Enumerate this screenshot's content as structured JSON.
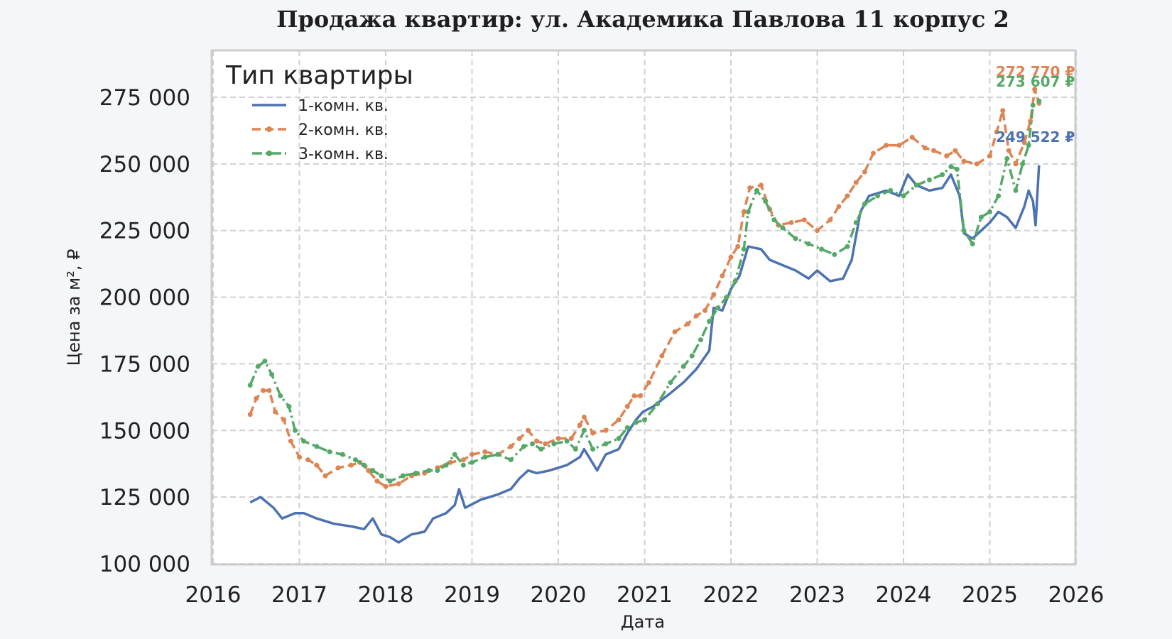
{
  "chart_data": {
    "type": "line",
    "title": "Продажа квартир: ул. Академика Павлова 11 корпус 2",
    "xlabel": "Дата",
    "ylabel": "Цена за м², ₽",
    "xlim": [
      2016,
      2026
    ],
    "ylim": [
      100000,
      290000
    ],
    "x_ticks": [
      2016,
      2017,
      2018,
      2019,
      2020,
      2021,
      2022,
      2023,
      2024,
      2025,
      2026
    ],
    "x_tick_labels": [
      "2016",
      "2017",
      "2018",
      "2019",
      "2020",
      "2021",
      "2022",
      "2023",
      "2024",
      "2025",
      "2026"
    ],
    "y_ticks": [
      100000,
      125000,
      150000,
      175000,
      200000,
      225000,
      250000,
      275000
    ],
    "y_tick_labels": [
      "100 000",
      "125 000",
      "150 000",
      "175 000",
      "200 000",
      "225 000",
      "250 000",
      "275 000"
    ],
    "grid": true,
    "legend": {
      "title": "Тип квартиры",
      "position": "top-left"
    },
    "series": [
      {
        "name": "1-комн. кв.",
        "color": "#4c72b0",
        "style": "solid",
        "end_label": "249 522 ₽",
        "points": [
          [
            2016.43,
            123000
          ],
          [
            2016.55,
            125000
          ],
          [
            2016.7,
            121000
          ],
          [
            2016.8,
            117000
          ],
          [
            2016.95,
            119000
          ],
          [
            2017.05,
            119000
          ],
          [
            2017.2,
            117000
          ],
          [
            2017.4,
            115000
          ],
          [
            2017.6,
            114000
          ],
          [
            2017.75,
            113000
          ],
          [
            2017.85,
            117000
          ],
          [
            2017.95,
            111000
          ],
          [
            2018.05,
            110000
          ],
          [
            2018.15,
            108000
          ],
          [
            2018.3,
            111000
          ],
          [
            2018.45,
            112000
          ],
          [
            2018.55,
            117000
          ],
          [
            2018.7,
            119000
          ],
          [
            2018.8,
            122000
          ],
          [
            2018.85,
            128000
          ],
          [
            2018.92,
            121000
          ],
          [
            2019.1,
            124000
          ],
          [
            2019.3,
            126000
          ],
          [
            2019.45,
            128000
          ],
          [
            2019.55,
            132000
          ],
          [
            2019.65,
            135000
          ],
          [
            2019.75,
            134000
          ],
          [
            2019.9,
            135000
          ],
          [
            2020.1,
            137000
          ],
          [
            2020.25,
            140000
          ],
          [
            2020.3,
            143000
          ],
          [
            2020.45,
            135000
          ],
          [
            2020.55,
            141000
          ],
          [
            2020.7,
            143000
          ],
          [
            2020.8,
            149000
          ],
          [
            2020.9,
            154000
          ],
          [
            2020.98,
            157000
          ],
          [
            2021.1,
            159000
          ],
          [
            2021.3,
            164000
          ],
          [
            2021.45,
            168000
          ],
          [
            2021.6,
            173000
          ],
          [
            2021.75,
            180000
          ],
          [
            2021.8,
            196000
          ],
          [
            2021.9,
            195000
          ],
          [
            2022.0,
            203000
          ],
          [
            2022.1,
            208000
          ],
          [
            2022.2,
            219000
          ],
          [
            2022.35,
            218000
          ],
          [
            2022.45,
            214000
          ],
          [
            2022.6,
            212000
          ],
          [
            2022.75,
            210000
          ],
          [
            2022.9,
            207000
          ],
          [
            2023.0,
            210000
          ],
          [
            2023.15,
            206000
          ],
          [
            2023.3,
            207000
          ],
          [
            2023.4,
            214000
          ],
          [
            2023.5,
            232000
          ],
          [
            2023.6,
            238000
          ],
          [
            2023.7,
            239000
          ],
          [
            2023.8,
            240000
          ],
          [
            2023.95,
            238000
          ],
          [
            2024.05,
            246000
          ],
          [
            2024.15,
            242000
          ],
          [
            2024.3,
            240000
          ],
          [
            2024.45,
            241000
          ],
          [
            2024.55,
            246000
          ],
          [
            2024.65,
            238000
          ],
          [
            2024.7,
            224000
          ],
          [
            2024.8,
            222000
          ],
          [
            2024.9,
            225000
          ],
          [
            2025.0,
            228000
          ],
          [
            2025.1,
            232000
          ],
          [
            2025.2,
            230000
          ],
          [
            2025.3,
            226000
          ],
          [
            2025.4,
            234000
          ],
          [
            2025.45,
            240000
          ],
          [
            2025.5,
            236000
          ],
          [
            2025.53,
            227000
          ],
          [
            2025.57,
            249522
          ]
        ]
      },
      {
        "name": "2-комн. кв.",
        "color": "#dd8452",
        "style": "dashed-markers",
        "end_label": "272 770 ₽",
        "points": [
          [
            2016.43,
            156000
          ],
          [
            2016.5,
            162000
          ],
          [
            2016.58,
            165000
          ],
          [
            2016.65,
            165000
          ],
          [
            2016.72,
            157000
          ],
          [
            2016.82,
            154000
          ],
          [
            2016.9,
            146000
          ],
          [
            2017.0,
            140000
          ],
          [
            2017.1,
            139000
          ],
          [
            2017.2,
            137000
          ],
          [
            2017.3,
            133000
          ],
          [
            2017.45,
            136000
          ],
          [
            2017.6,
            137000
          ],
          [
            2017.7,
            138000
          ],
          [
            2017.8,
            135000
          ],
          [
            2017.9,
            131000
          ],
          [
            2018.0,
            129000
          ],
          [
            2018.15,
            130000
          ],
          [
            2018.3,
            133000
          ],
          [
            2018.45,
            134000
          ],
          [
            2018.6,
            136000
          ],
          [
            2018.75,
            138000
          ],
          [
            2018.9,
            139000
          ],
          [
            2019.0,
            141000
          ],
          [
            2019.15,
            142000
          ],
          [
            2019.3,
            141000
          ],
          [
            2019.45,
            144000
          ],
          [
            2019.55,
            147000
          ],
          [
            2019.65,
            150000
          ],
          [
            2019.75,
            146000
          ],
          [
            2019.85,
            145000
          ],
          [
            2020.0,
            147000
          ],
          [
            2020.15,
            147000
          ],
          [
            2020.25,
            152000
          ],
          [
            2020.3,
            155000
          ],
          [
            2020.4,
            149000
          ],
          [
            2020.55,
            150000
          ],
          [
            2020.7,
            154000
          ],
          [
            2020.8,
            159000
          ],
          [
            2020.88,
            163000
          ],
          [
            2020.95,
            163000
          ],
          [
            2021.05,
            168000
          ],
          [
            2021.2,
            178000
          ],
          [
            2021.35,
            187000
          ],
          [
            2021.5,
            190000
          ],
          [
            2021.6,
            193000
          ],
          [
            2021.7,
            195000
          ],
          [
            2021.8,
            201000
          ],
          [
            2021.9,
            208000
          ],
          [
            2022.0,
            215000
          ],
          [
            2022.08,
            219000
          ],
          [
            2022.15,
            232000
          ],
          [
            2022.22,
            241000
          ],
          [
            2022.35,
            242000
          ],
          [
            2022.45,
            233000
          ],
          [
            2022.55,
            227000
          ],
          [
            2022.7,
            228000
          ],
          [
            2022.85,
            229000
          ],
          [
            2023.0,
            225000
          ],
          [
            2023.15,
            229000
          ],
          [
            2023.25,
            234000
          ],
          [
            2023.35,
            238000
          ],
          [
            2023.45,
            243000
          ],
          [
            2023.55,
            247000
          ],
          [
            2023.65,
            254000
          ],
          [
            2023.8,
            257000
          ],
          [
            2023.95,
            257000
          ],
          [
            2024.1,
            260000
          ],
          [
            2024.25,
            256000
          ],
          [
            2024.35,
            255000
          ],
          [
            2024.5,
            253000
          ],
          [
            2024.6,
            255000
          ],
          [
            2024.7,
            251000
          ],
          [
            2024.85,
            250000
          ],
          [
            2025.0,
            253000
          ],
          [
            2025.08,
            262000
          ],
          [
            2025.15,
            270000
          ],
          [
            2025.22,
            255000
          ],
          [
            2025.3,
            250000
          ],
          [
            2025.4,
            258000
          ],
          [
            2025.47,
            266000
          ],
          [
            2025.52,
            278000
          ],
          [
            2025.57,
            272770
          ]
        ]
      },
      {
        "name": "3-комн. кв.",
        "color": "#55a868",
        "style": "dashdot-markers",
        "end_label": "273 607 ₽",
        "points": [
          [
            2016.43,
            167000
          ],
          [
            2016.52,
            174000
          ],
          [
            2016.6,
            176000
          ],
          [
            2016.68,
            171000
          ],
          [
            2016.78,
            163000
          ],
          [
            2016.88,
            159000
          ],
          [
            2016.95,
            150000
          ],
          [
            2017.05,
            146000
          ],
          [
            2017.2,
            144000
          ],
          [
            2017.35,
            142000
          ],
          [
            2017.5,
            141000
          ],
          [
            2017.65,
            139000
          ],
          [
            2017.75,
            137000
          ],
          [
            2017.85,
            135000
          ],
          [
            2017.95,
            133000
          ],
          [
            2018.05,
            131000
          ],
          [
            2018.2,
            133000
          ],
          [
            2018.35,
            134000
          ],
          [
            2018.5,
            135000
          ],
          [
            2018.6,
            135000
          ],
          [
            2018.7,
            137000
          ],
          [
            2018.8,
            141000
          ],
          [
            2018.9,
            137000
          ],
          [
            2019.0,
            138000
          ],
          [
            2019.15,
            140000
          ],
          [
            2019.3,
            141000
          ],
          [
            2019.45,
            139000
          ],
          [
            2019.6,
            144000
          ],
          [
            2019.7,
            145000
          ],
          [
            2019.8,
            143000
          ],
          [
            2019.95,
            145000
          ],
          [
            2020.1,
            146000
          ],
          [
            2020.2,
            143000
          ],
          [
            2020.3,
            150000
          ],
          [
            2020.4,
            143000
          ],
          [
            2020.55,
            145000
          ],
          [
            2020.7,
            147000
          ],
          [
            2020.8,
            151000
          ],
          [
            2020.9,
            153000
          ],
          [
            2021.0,
            154000
          ],
          [
            2021.15,
            160000
          ],
          [
            2021.3,
            168000
          ],
          [
            2021.45,
            174000
          ],
          [
            2021.55,
            178000
          ],
          [
            2021.65,
            184000
          ],
          [
            2021.75,
            191000
          ],
          [
            2021.85,
            196000
          ],
          [
            2021.95,
            200000
          ],
          [
            2022.05,
            206000
          ],
          [
            2022.15,
            218000
          ],
          [
            2022.2,
            232000
          ],
          [
            2022.3,
            240000
          ],
          [
            2022.4,
            236000
          ],
          [
            2022.5,
            229000
          ],
          [
            2022.6,
            226000
          ],
          [
            2022.75,
            222000
          ],
          [
            2022.9,
            220000
          ],
          [
            2023.05,
            218000
          ],
          [
            2023.2,
            216000
          ],
          [
            2023.35,
            219000
          ],
          [
            2023.45,
            228000
          ],
          [
            2023.55,
            235000
          ],
          [
            2023.7,
            238000
          ],
          [
            2023.85,
            240000
          ],
          [
            2024.0,
            238000
          ],
          [
            2024.15,
            242000
          ],
          [
            2024.3,
            244000
          ],
          [
            2024.45,
            246000
          ],
          [
            2024.55,
            249000
          ],
          [
            2024.62,
            248000
          ],
          [
            2024.7,
            225000
          ],
          [
            2024.8,
            220000
          ],
          [
            2024.9,
            230000
          ],
          [
            2025.0,
            232000
          ],
          [
            2025.1,
            238000
          ],
          [
            2025.2,
            252000
          ],
          [
            2025.3,
            240000
          ],
          [
            2025.38,
            250000
          ],
          [
            2025.45,
            257000
          ],
          [
            2025.5,
            272000
          ],
          [
            2025.57,
            273607
          ]
        ]
      }
    ]
  }
}
